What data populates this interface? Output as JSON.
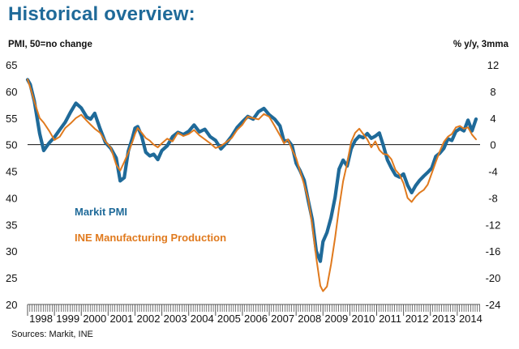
{
  "title": "Historical overview:",
  "footer": {
    "source": "Sources: Markit, INE"
  },
  "colors": {
    "title": "#1f6a99",
    "pmi": "#1f6a99",
    "ine": "#e07a1e",
    "axis": "#555555",
    "zero_line": "#111111"
  },
  "chart_data": {
    "type": "line",
    "title": "Historical overview:",
    "left_axis_label": "PMI, 50=no change",
    "right_axis_label": "% y/y, 3mma",
    "left_ticks": [
      65,
      60,
      55,
      50,
      45,
      40,
      35,
      30,
      25,
      20
    ],
    "right_ticks": [
      12,
      8,
      4,
      0,
      -4,
      -8,
      -12,
      -16,
      -20,
      -24
    ],
    "ylim_left": [
      20,
      65
    ],
    "ylim_right": [
      -24,
      12
    ],
    "x_years": [
      "1998",
      "1999",
      "2000",
      "2001",
      "2002",
      "2003",
      "2004",
      "2005",
      "2006",
      "2007",
      "2008",
      "2009",
      "2010",
      "2011",
      "2012",
      "2013",
      "2014"
    ],
    "legend": [
      "Markit PMI",
      "INE Manufacturing Production"
    ],
    "series": [
      {
        "name": "Markit PMI",
        "axis": "left",
        "points": [
          [
            1998.0,
            62.2
          ],
          [
            1998.1,
            61.3
          ],
          [
            1998.25,
            58.2
          ],
          [
            1998.45,
            52.1
          ],
          [
            1998.6,
            48.9
          ],
          [
            1998.8,
            50.3
          ],
          [
            1999.0,
            51.4
          ],
          [
            1999.2,
            52.8
          ],
          [
            1999.4,
            54.2
          ],
          [
            1999.6,
            56.1
          ],
          [
            1999.8,
            57.8
          ],
          [
            2000.0,
            56.9
          ],
          [
            2000.2,
            55.2
          ],
          [
            2000.35,
            54.8
          ],
          [
            2000.5,
            55.9
          ],
          [
            2000.7,
            53.0
          ],
          [
            2000.9,
            50.4
          ],
          [
            2001.1,
            49.3
          ],
          [
            2001.3,
            47.5
          ],
          [
            2001.45,
            43.2
          ],
          [
            2001.6,
            43.8
          ],
          [
            2001.75,
            48.8
          ],
          [
            2001.9,
            51.2
          ],
          [
            2002.0,
            53.1
          ],
          [
            2002.1,
            53.4
          ],
          [
            2002.25,
            51.6
          ],
          [
            2002.4,
            48.6
          ],
          [
            2002.55,
            47.9
          ],
          [
            2002.7,
            48.2
          ],
          [
            2002.85,
            47.2
          ],
          [
            2003.0,
            48.9
          ],
          [
            2003.2,
            49.8
          ],
          [
            2003.4,
            51.5
          ],
          [
            2003.6,
            52.3
          ],
          [
            2003.8,
            51.9
          ],
          [
            2004.0,
            52.5
          ],
          [
            2004.2,
            53.7
          ],
          [
            2004.4,
            52.4
          ],
          [
            2004.6,
            52.9
          ],
          [
            2004.8,
            51.5
          ],
          [
            2005.0,
            50.8
          ],
          [
            2005.2,
            49.2
          ],
          [
            2005.4,
            50.3
          ],
          [
            2005.6,
            51.6
          ],
          [
            2005.8,
            53.2
          ],
          [
            2006.0,
            54.3
          ],
          [
            2006.2,
            55.3
          ],
          [
            2006.4,
            54.8
          ],
          [
            2006.6,
            56.2
          ],
          [
            2006.8,
            56.8
          ],
          [
            2007.0,
            55.6
          ],
          [
            2007.2,
            54.8
          ],
          [
            2007.4,
            53.5
          ],
          [
            2007.55,
            50.6
          ],
          [
            2007.7,
            50.8
          ],
          [
            2007.85,
            49.8
          ],
          [
            2008.0,
            46.5
          ],
          [
            2008.15,
            45.1
          ],
          [
            2008.3,
            43.3
          ],
          [
            2008.45,
            39.5
          ],
          [
            2008.6,
            36.0
          ],
          [
            2008.75,
            30.0
          ],
          [
            2008.9,
            28.1
          ],
          [
            2009.0,
            31.8
          ],
          [
            2009.15,
            33.5
          ],
          [
            2009.3,
            36.3
          ],
          [
            2009.45,
            40.1
          ],
          [
            2009.6,
            45.4
          ],
          [
            2009.75,
            47.1
          ],
          [
            2009.9,
            46.0
          ],
          [
            2010.05,
            49.2
          ],
          [
            2010.2,
            50.8
          ],
          [
            2010.35,
            51.6
          ],
          [
            2010.5,
            51.3
          ],
          [
            2010.65,
            52.1
          ],
          [
            2010.8,
            51.2
          ],
          [
            2010.95,
            51.6
          ],
          [
            2011.1,
            52.2
          ],
          [
            2011.25,
            49.8
          ],
          [
            2011.4,
            47.1
          ],
          [
            2011.55,
            45.6
          ],
          [
            2011.7,
            44.3
          ],
          [
            2011.85,
            43.9
          ],
          [
            2012.0,
            44.5
          ],
          [
            2012.15,
            42.4
          ],
          [
            2012.3,
            41.0
          ],
          [
            2012.45,
            42.3
          ],
          [
            2012.6,
            43.3
          ],
          [
            2012.75,
            44.1
          ],
          [
            2012.9,
            44.8
          ],
          [
            2013.05,
            45.6
          ],
          [
            2013.2,
            47.8
          ],
          [
            2013.35,
            48.4
          ],
          [
            2013.5,
            49.3
          ],
          [
            2013.65,
            51.1
          ],
          [
            2013.8,
            50.8
          ],
          [
            2013.95,
            52.5
          ],
          [
            2014.1,
            53.0
          ],
          [
            2014.25,
            52.6
          ],
          [
            2014.4,
            54.6
          ],
          [
            2014.55,
            52.6
          ],
          [
            2014.7,
            54.8
          ]
        ]
      },
      {
        "name": "INE Manufacturing Production",
        "axis": "right",
        "points": [
          [
            1998.0,
            9.8
          ],
          [
            1998.1,
            8.6
          ],
          [
            1998.25,
            6.5
          ],
          [
            1998.45,
            4.0
          ],
          [
            1998.6,
            3.3
          ],
          [
            1998.8,
            2.1
          ],
          [
            1999.0,
            0.7
          ],
          [
            1999.2,
            1.2
          ],
          [
            1999.4,
            2.5
          ],
          [
            1999.6,
            3.2
          ],
          [
            1999.8,
            4.0
          ],
          [
            2000.0,
            4.5
          ],
          [
            2000.2,
            3.6
          ],
          [
            2000.35,
            3.0
          ],
          [
            2000.5,
            2.4
          ],
          [
            2000.7,
            1.8
          ],
          [
            2000.9,
            0.5
          ],
          [
            2001.1,
            -0.5
          ],
          [
            2001.3,
            -3.0
          ],
          [
            2001.45,
            -3.9
          ],
          [
            2001.6,
            -2.6
          ],
          [
            2001.75,
            -1.2
          ],
          [
            2001.9,
            0.4
          ],
          [
            2002.0,
            1.6
          ],
          [
            2002.1,
            2.5
          ],
          [
            2002.25,
            1.8
          ],
          [
            2002.4,
            1.0
          ],
          [
            2002.55,
            0.6
          ],
          [
            2002.7,
            0.0
          ],
          [
            2002.85,
            -0.4
          ],
          [
            2003.0,
            0.2
          ],
          [
            2003.2,
            0.9
          ],
          [
            2003.4,
            0.5
          ],
          [
            2003.6,
            1.8
          ],
          [
            2003.8,
            1.3
          ],
          [
            2004.0,
            1.6
          ],
          [
            2004.2,
            2.2
          ],
          [
            2004.4,
            1.4
          ],
          [
            2004.6,
            0.8
          ],
          [
            2004.8,
            0.2
          ],
          [
            2005.0,
            -0.5
          ],
          [
            2005.2,
            -0.2
          ],
          [
            2005.4,
            0.4
          ],
          [
            2005.6,
            1.0
          ],
          [
            2005.8,
            2.2
          ],
          [
            2006.0,
            3.0
          ],
          [
            2006.2,
            4.2
          ],
          [
            2006.4,
            4.0
          ],
          [
            2006.6,
            3.8
          ],
          [
            2006.8,
            4.6
          ],
          [
            2007.0,
            4.2
          ],
          [
            2007.2,
            2.8
          ],
          [
            2007.4,
            1.4
          ],
          [
            2007.55,
            0.2
          ],
          [
            2007.7,
            0.8
          ],
          [
            2007.85,
            -0.8
          ],
          [
            2008.0,
            -2.0
          ],
          [
            2008.15,
            -4.0
          ],
          [
            2008.3,
            -6.0
          ],
          [
            2008.45,
            -8.2
          ],
          [
            2008.6,
            -12.0
          ],
          [
            2008.75,
            -17.0
          ],
          [
            2008.9,
            -21.2
          ],
          [
            2009.0,
            -22.0
          ],
          [
            2009.15,
            -21.3
          ],
          [
            2009.3,
            -18.0
          ],
          [
            2009.45,
            -14.0
          ],
          [
            2009.6,
            -9.5
          ],
          [
            2009.75,
            -5.5
          ],
          [
            2009.9,
            -2.8
          ],
          [
            2010.05,
            0.4
          ],
          [
            2010.2,
            1.8
          ],
          [
            2010.35,
            2.4
          ],
          [
            2010.5,
            1.6
          ],
          [
            2010.65,
            0.8
          ],
          [
            2010.8,
            -0.4
          ],
          [
            2010.95,
            0.5
          ],
          [
            2011.1,
            -0.8
          ],
          [
            2011.25,
            -1.4
          ],
          [
            2011.4,
            -1.5
          ],
          [
            2011.55,
            -2.2
          ],
          [
            2011.7,
            -3.8
          ],
          [
            2011.85,
            -4.5
          ],
          [
            2012.0,
            -5.8
          ],
          [
            2012.15,
            -8.0
          ],
          [
            2012.3,
            -8.6
          ],
          [
            2012.45,
            -7.8
          ],
          [
            2012.6,
            -7.2
          ],
          [
            2012.75,
            -6.8
          ],
          [
            2012.9,
            -6.0
          ],
          [
            2013.05,
            -4.3
          ],
          [
            2013.2,
            -2.6
          ],
          [
            2013.35,
            -1.0
          ],
          [
            2013.5,
            0.4
          ],
          [
            2013.65,
            1.2
          ],
          [
            2013.8,
            1.6
          ],
          [
            2013.95,
            2.6
          ],
          [
            2014.1,
            2.8
          ],
          [
            2014.25,
            2.4
          ],
          [
            2014.4,
            2.6
          ],
          [
            2014.55,
            1.5
          ],
          [
            2014.7,
            0.8
          ]
        ]
      }
    ]
  }
}
